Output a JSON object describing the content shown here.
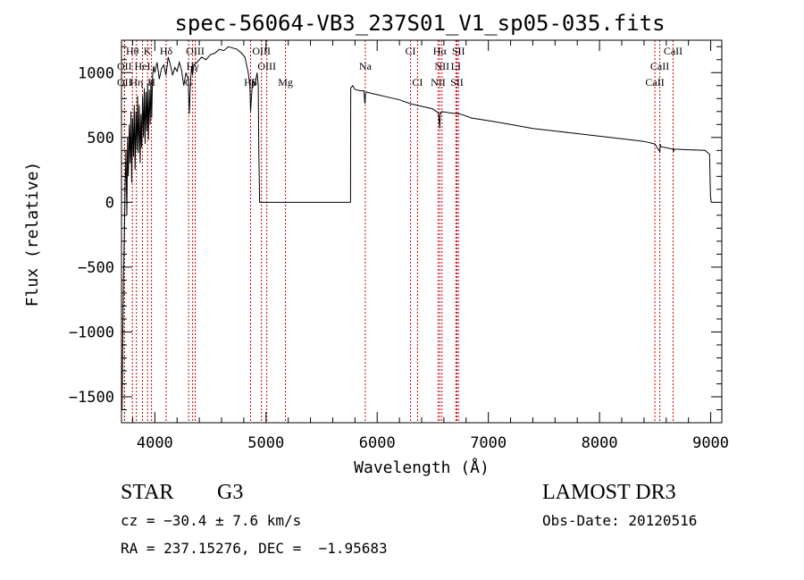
{
  "chart_data": {
    "type": "line",
    "title": "spec-56064-VB3_237S01_V1_sp05-035.fits",
    "xlabel": "Wavelength (Å)",
    "ylabel": "Flux (relative)",
    "xlim": [
      3700,
      9100
    ],
    "ylim": [
      -1700,
      1250
    ],
    "x_ticks": [
      4000,
      5000,
      6000,
      7000,
      8000,
      9000
    ],
    "x_tick_labels": [
      "4000",
      "5000",
      "6000",
      "7000",
      "8000",
      "9000"
    ],
    "y_ticks": [
      -1500,
      -1000,
      -500,
      0,
      500,
      1000
    ],
    "y_tick_labels": [
      "−1500",
      "−1000",
      "−500",
      "0",
      "500",
      "1000"
    ],
    "series": [
      {
        "name": "spectrum",
        "color": "#000000",
        "x": [
          3705,
          3712,
          3718,
          3725,
          3732,
          3740,
          3748,
          3755,
          3762,
          3770,
          3778,
          3785,
          3792,
          3800,
          3808,
          3815,
          3822,
          3830,
          3838,
          3845,
          3852,
          3860,
          3868,
          3875,
          3882,
          3890,
          3898,
          3905,
          3912,
          3920,
          3928,
          3935,
          3942,
          3950,
          3958,
          3965,
          3972,
          3980,
          3990,
          4000,
          4020,
          4040,
          4060,
          4080,
          4100,
          4120,
          4140,
          4160,
          4180,
          4200,
          4220,
          4240,
          4260,
          4280,
          4300,
          4310,
          4320,
          4330,
          4340,
          4350,
          4380,
          4420,
          4460,
          4500,
          4540,
          4580,
          4620,
          4660,
          4700,
          4740,
          4780,
          4810,
          4840,
          4855,
          4861,
          4868,
          4880,
          4900,
          4920,
          4930,
          4935,
          4940,
          4942,
          4945,
          5000,
          5200,
          5500,
          5760,
          5762,
          5780,
          5800,
          5850,
          5880,
          5890,
          5896,
          5905,
          5950,
          6000,
          6100,
          6200,
          6300,
          6350,
          6450,
          6500,
          6550,
          6560,
          6563,
          6566,
          6580,
          6650,
          6750,
          6850,
          7000,
          7200,
          7400,
          7600,
          7800,
          8000,
          8200,
          8400,
          8498,
          8505,
          8542,
          8546,
          8550,
          8600,
          8662,
          8666,
          8670,
          8800,
          8950,
          8990,
          8998,
          9005
        ],
        "y": [
          -1600,
          -1000,
          -600,
          -300,
          100,
          400,
          -100,
          500,
          200,
          600,
          300,
          700,
          150,
          650,
          350,
          750,
          250,
          700,
          400,
          820,
          380,
          750,
          300,
          680,
          420,
          820,
          500,
          880,
          450,
          850,
          550,
          920,
          480,
          870,
          600,
          940,
          650,
          980,
          1050,
          1000,
          1080,
          950,
          1030,
          1060,
          980,
          1120,
          1060,
          980,
          1040,
          1010,
          1080,
          1020,
          900,
          1000,
          950,
          680,
          920,
          1050,
          980,
          1060,
          1080,
          1120,
          1100,
          1140,
          1150,
          1180,
          1170,
          1200,
          1190,
          1180,
          1150,
          1120,
          1000,
          900,
          700,
          800,
          950,
          900,
          1000,
          900,
          400,
          150,
          0,
          0,
          0,
          0,
          0,
          0,
          880,
          900,
          870,
          860,
          860,
          760,
          840,
          850,
          840,
          830,
          810,
          790,
          760,
          750,
          730,
          720,
          690,
          600,
          570,
          680,
          700,
          690,
          680,
          650,
          630,
          600,
          570,
          550,
          530,
          510,
          490,
          470,
          450,
          440,
          390,
          450,
          430,
          420,
          410,
          390,
          410,
          405,
          400,
          370,
          50,
          0
        ]
      }
    ],
    "spectral_lines": [
      {
        "label": "Hθ",
        "x": 3798,
        "row": 0
      },
      {
        "label": "K",
        "x": 3934,
        "row": 0
      },
      {
        "label": "Hδ",
        "x": 4102,
        "row": 0
      },
      {
        "label": "OIII",
        "x": 4363,
        "row": 0
      },
      {
        "label": "OIII",
        "x": 4959,
        "row": 0
      },
      {
        "label": "CI",
        "x": 6300,
        "row": 0
      },
      {
        "label": "Hα",
        "x": 6563,
        "row": 0
      },
      {
        "label": "SII",
        "x": 6731,
        "row": 0
      },
      {
        "label": "CaII",
        "x": 8662,
        "row": 0
      },
      {
        "label": "OII",
        "x": 3727,
        "row": 1
      },
      {
        "label": "HeI",
        "x": 3889,
        "row": 1
      },
      {
        "label": "Hγ",
        "x": 4340,
        "row": 1
      },
      {
        "label": "OIII",
        "x": 5007,
        "row": 1
      },
      {
        "label": "Na",
        "x": 5893,
        "row": 1
      },
      {
        "label": "NII",
        "x": 6583,
        "row": 1
      },
      {
        "label": "LI",
        "x": 6708,
        "row": 1
      },
      {
        "label": "CaII",
        "x": 8542,
        "row": 1
      },
      {
        "label": "OII",
        "x": 3727,
        "row": 2
      },
      {
        "label": "Hη",
        "x": 3835,
        "row": 2
      },
      {
        "label": "H",
        "x": 3970,
        "row": 2
      },
      {
        "label": "G",
        "x": 4304,
        "row": 2
      },
      {
        "label": "Hβ",
        "x": 4861,
        "row": 2
      },
      {
        "label": "Mg",
        "x": 5175,
        "row": 2
      },
      {
        "label": "CI",
        "x": 6363,
        "row": 2
      },
      {
        "label": "NII",
        "x": 6548,
        "row": 2
      },
      {
        "label": "SII",
        "x": 6717,
        "row": 2
      },
      {
        "label": "CaII",
        "x": 8498,
        "row": 2
      }
    ],
    "line_marker_color": "#cc0000"
  },
  "info": {
    "object_class": "STAR",
    "subclass": "G3",
    "survey": "LAMOST DR3",
    "redshift": "cz = −30.4 ± 7.6 km/s",
    "obs_date": "Obs-Date: 20120516",
    "coords": "RA = 237.15276, DEC =  −1.95683"
  }
}
